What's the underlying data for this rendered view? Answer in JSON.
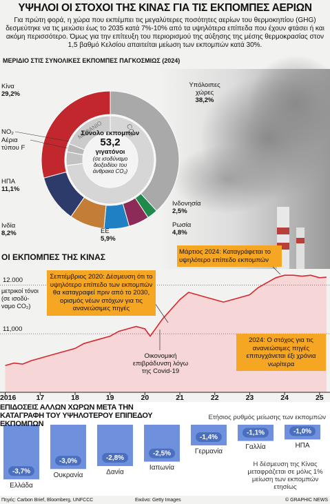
{
  "header": {
    "title": "ΥΨΗΛΟΙ ΟΙ ΣΤΟΧΟΙ ΤΗΣ ΚΙΝΑΣ ΓΙΑ ΤΙΣ ΕΚΠΟΜΠΕΣ ΑΕΡΙΩΝ",
    "text": "Για πρώτη φορά, η χώρα που εκπέμπει τις μεγαλύτερες ποσότητες αερίων του θερμοκηπίου (GHG) δεσμεύτηκε να τις μειώσει έως το 2035 κατά 7%-10% από τα υψηλότερα επίπεδα που έχουν φτάσει ή και ακόμη περισσότερο. Όμως για την επίτευξη του περιορισμού της αύξησης της μέσης θερμοκρασίας στον 1,5 βαθμό Κελσίου απαιτείται μείωση των εκπομπών κατά 30%."
  },
  "chart_data": [
    {
      "type": "pie",
      "title": "ΜΕΡΙΔΙΟ ΣΤΙΣ ΣΥΝΟΛΙΚΕΣ ΕΚΠΟΜΠΕΣ ΠΑΓΚΟΣΜΙΩΣ (2024)",
      "categories": [
        "Υπόλοιπες χώρες",
        "Ινδονησία",
        "Ρωσία",
        "ΕΕ",
        "Ινδία",
        "ΗΠΑ",
        "Κίνα"
      ],
      "values": [
        38.2,
        2.5,
        4.8,
        5.9,
        8.2,
        11.1,
        29.2
      ],
      "value_labels": [
        "38,2%",
        "2,5%",
        "4,8%",
        "5,9%",
        "8,2%",
        "11,1%",
        "29,2%"
      ],
      "colors": [
        "#a9a9a9",
        "#1f8a4c",
        "#8c2b57",
        "#1f80c4",
        "#c47d36",
        "#2d3b6b",
        "#c1272d"
      ],
      "inner": {
        "categories": [
          "CO₂",
          "NO₂",
          "Αέρια τύπου F",
          "ΜΕΘΑΝΙΟ"
        ],
        "values": [
          73,
          5,
          3,
          19
        ],
        "colors": [
          "#d6d6d6",
          "#c2c2c2",
          "#b8b8b8",
          "#cbcbcb"
        ]
      },
      "center": {
        "label": "Σύνολο εκπομπών",
        "value": "53,2",
        "unit": "γιγατόνοι",
        "note": "(σε ισοδύναμο διοξειδίου του άνθρακα CO₂)"
      }
    },
    {
      "type": "line",
      "title": "ΟΙ ΕΚΠΟΜΠΕΣ ΤΗΣ ΚΙΝΑΣ",
      "y_label": "μετρικοί τόνοι (σε ισοδύ-ναμο CO₂)",
      "x": [
        2016.0,
        2016.25,
        2016.5,
        2016.75,
        2017.0,
        2017.25,
        2017.5,
        2017.75,
        2018.0,
        2018.25,
        2018.5,
        2018.75,
        2019.0,
        2019.25,
        2019.5,
        2019.75,
        2020.0,
        2020.15,
        2020.35,
        2020.5,
        2020.75,
        2021.0,
        2021.25,
        2021.5,
        2021.75,
        2022.0,
        2022.25,
        2022.5,
        2022.75,
        2023.0,
        2023.25,
        2023.5,
        2023.75,
        2024.0,
        2024.25,
        2024.5,
        2024.75,
        2025.0,
        2025.2
      ],
      "values": [
        10350,
        10400,
        10380,
        10450,
        10500,
        10550,
        10600,
        10650,
        10700,
        10800,
        10850,
        10900,
        10950,
        11050,
        11100,
        11150,
        11100,
        10950,
        11150,
        11300,
        11500,
        11700,
        11850,
        11800,
        11750,
        11700,
        11650,
        11700,
        11750,
        11800,
        11950,
        12050,
        12150,
        12200,
        12200,
        12180,
        12200,
        12150,
        12160
      ],
      "color": "#d9262c",
      "area_color": "#f6d6d6",
      "xlim": [
        2015.85,
        2025.3
      ],
      "xticks": [
        2016,
        {
          "value": 2017,
          "label": "17"
        },
        {
          "value": 2018,
          "label": "18"
        },
        {
          "value": 2019,
          "label": "19"
        },
        {
          "value": 2020,
          "label": "20"
        },
        {
          "value": 2021,
          "label": "21"
        },
        {
          "value": 2022,
          "label": "22"
        },
        {
          "value": 2023,
          "label": "23"
        },
        {
          "value": 2024,
          "label": "24"
        },
        {
          "value": 2025,
          "label": "25"
        }
      ],
      "ylim": [
        9800,
        12500
      ],
      "yticks": [
        {
          "value": 12000,
          "label": "12.000"
        },
        {
          "value": 11000,
          "label": "11,000"
        }
      ],
      "grid": true,
      "annotations": [
        "Σεπτέμβριος 2020: Δέσμευση ότι το υψηλότερο επίπεδο των εκπομπών θα καταγραφεί πριν από το 2030, ορισμός νέων στόχων για τις ανανεώσιμες πηγές",
        "Μάρτιος 2024: Καταγράφεται το υψηλότερο επίπεδο εκπομπών",
        "Οικονομική επιβράδυνση λόγω της Covid-19",
        "2024: Ο στόχος για τις ανανεώσιμες πηγές επιτυγχάνεται έξι χρόνια νωρίτερα"
      ]
    },
    {
      "type": "bar",
      "title": "ΕΠΙΔΟΣΕΙΣ ΑΛΛΩΝ ΧΩΡΩΝ ΜΕΤΑ ΤΗΝ ΚΑΤΑΓΡΑΦΗ ΤΟΥ ΥΨΗΛΟΤΕΡΟΥ ΕΠΙΠΕΔΟΥ ΕΚΠΟΜΠΩΝ",
      "subtitle": "Ετήσιος ρυθμός μείωσης των εκπομπών",
      "categories": [
        "Ελλάδα",
        "Ουκρανία",
        "Δανία",
        "Ιαπωνία",
        "Γερμανία",
        "Γαλλία",
        "ΗΠΑ"
      ],
      "values": [
        -3.7,
        -3.0,
        -2.8,
        -2.5,
        -1.4,
        -1.1,
        -1.0
      ],
      "value_labels": [
        "-3,7%",
        "-3,0%",
        "-2,8%",
        "-2,5%",
        "-1,4%",
        "-1,1%",
        "-1,0%"
      ],
      "color": "#6f90dc",
      "ylim": [
        -4.2,
        0
      ],
      "note": "Η δέσμευση της Κίνας μεταφράζεται σε μόλις 1% μείωση των εκπομπών ετησίως"
    }
  ],
  "footer": {
    "sources": "Πηγές: Carbon Brief, Bloomberg, UNFCCC",
    "image": "Εικόνα: Getty Images",
    "credit": "© GRAPHIC NEWS"
  }
}
